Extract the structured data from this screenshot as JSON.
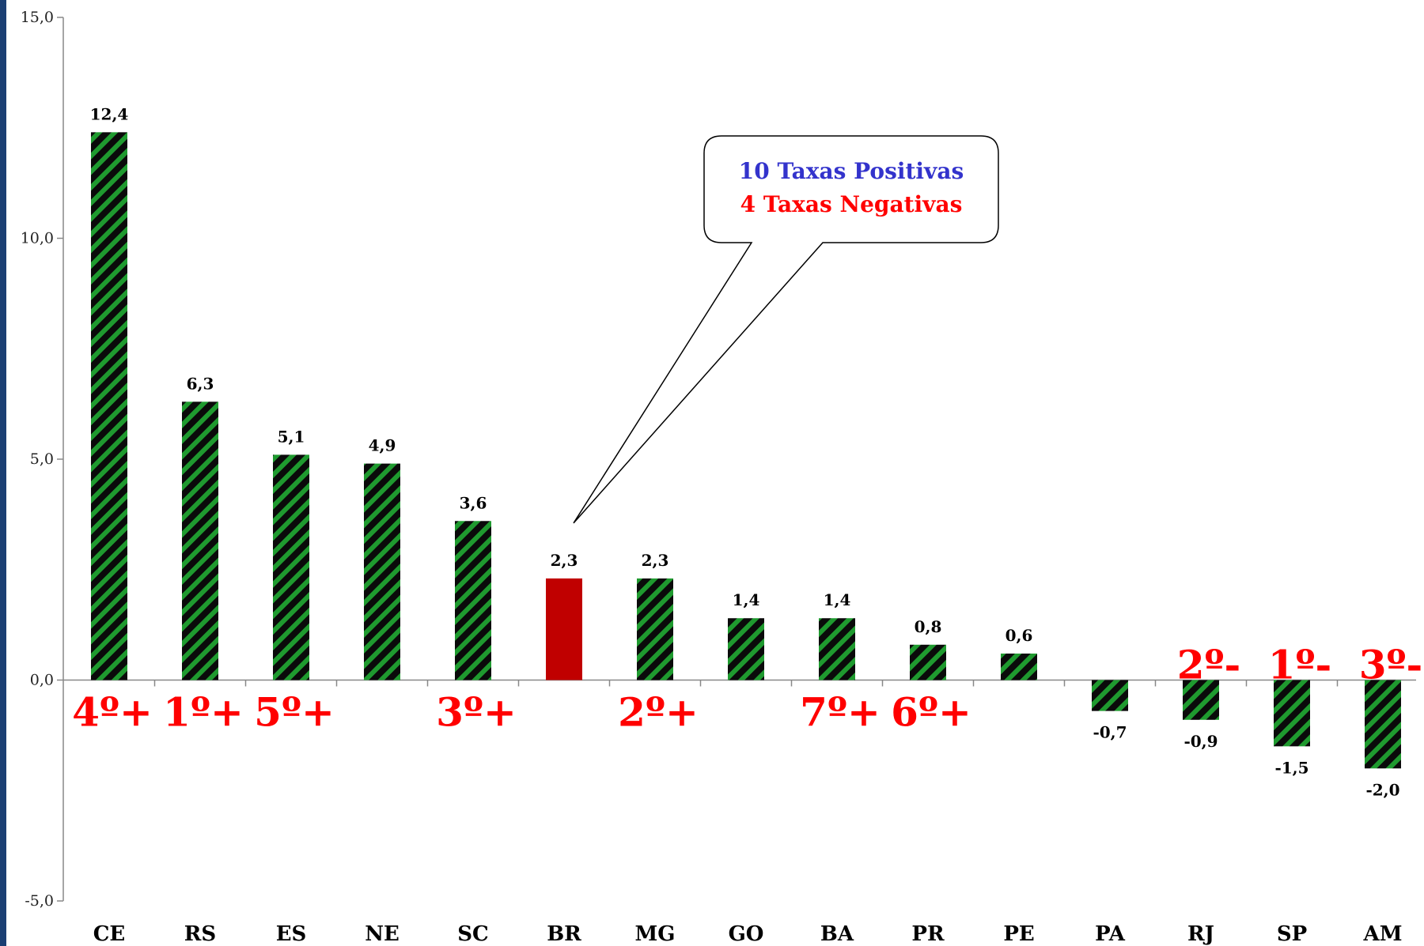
{
  "chart_data": {
    "type": "bar",
    "categories": [
      "CE",
      "RS",
      "ES",
      "NE",
      "SC",
      "BR",
      "MG",
      "GO",
      "BA",
      "PR",
      "PE",
      "PA",
      "RJ",
      "SP",
      "AM"
    ],
    "values": [
      12.4,
      6.3,
      5.1,
      4.9,
      3.6,
      2.3,
      2.3,
      1.4,
      1.4,
      0.8,
      0.6,
      -0.7,
      -0.9,
      -1.5,
      -2.0
    ],
    "value_labels": [
      "12,4",
      "6,3",
      "5,1",
      "4,9",
      "3,6",
      "2,3",
      "2,3",
      "1,4",
      "1,4",
      "0,8",
      "0,6",
      "-0,7",
      "-0,9",
      "-1,5",
      "-2,0"
    ],
    "rank_labels": [
      "4º+",
      "1º+",
      "5º+",
      "",
      "3º+",
      "",
      "2º+",
      "",
      "7º+",
      "6º+",
      "",
      "",
      "2º-",
      "1º-",
      "3º-"
    ],
    "highlight_category": "BR",
    "ylim": [
      -5,
      15
    ],
    "yticks": [
      -5,
      0,
      5,
      10,
      15
    ],
    "ytick_labels": [
      "-5,0",
      "0,0",
      "5,0",
      "10,0",
      "15,0"
    ],
    "title": "",
    "xlabel": "",
    "ylabel": "",
    "grid": false,
    "colors": {
      "bar_fill": "#1f9a2f",
      "bar_stripe": "#0a0a0a",
      "highlight": "#c00000",
      "rank_text": "#ff0000",
      "left_strip": "#1b3f73"
    },
    "annotation": {
      "line1": "10 Taxas Positivas",
      "line2": "4 Taxas Negativas",
      "line1_color": "#3333cc",
      "line2_color": "#ff0000",
      "points_to": "BR"
    }
  }
}
